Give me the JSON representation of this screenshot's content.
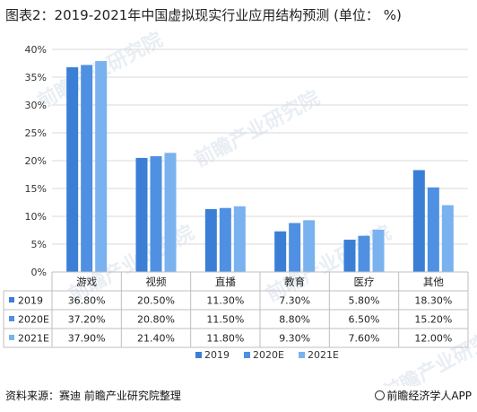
{
  "title": "图表2：2019-2021年中国虚拟现实行业应用结构预测 (单位： %)",
  "source": "资料来源：赛迪 前瞻产业研究院整理",
  "brand": "前瞻经济学人APP",
  "watermark": "前瞻产业研究院",
  "chart_data": {
    "type": "bar",
    "categories": [
      "游戏",
      "视频",
      "直播",
      "教育",
      "医疗",
      "其他"
    ],
    "series": [
      {
        "name": "2019",
        "values": [
          36.8,
          20.5,
          11.3,
          7.3,
          5.8,
          18.3
        ],
        "labels": [
          "36.80%",
          "20.50%",
          "11.30%",
          "7.30%",
          "5.80%",
          "18.30%"
        ],
        "color": "#3a7fd5"
      },
      {
        "name": "2020E",
        "values": [
          37.2,
          20.8,
          11.5,
          8.8,
          6.5,
          15.2
        ],
        "labels": [
          "37.20%",
          "20.80%",
          "11.50%",
          "8.80%",
          "6.50%",
          "15.20%"
        ],
        "color": "#4f90e2"
      },
      {
        "name": "2021E",
        "values": [
          37.9,
          21.4,
          11.8,
          9.3,
          7.6,
          12.0
        ],
        "labels": [
          "37.90%",
          "21.40%",
          "11.80%",
          "9.30%",
          "7.60%",
          "12.00%"
        ],
        "color": "#7ab2ef"
      }
    ],
    "yticks": [
      "0%",
      "5%",
      "10%",
      "15%",
      "20%",
      "25%",
      "30%",
      "35%",
      "40%"
    ],
    "ylim": [
      0,
      40
    ],
    "grid": true,
    "legend": "bottom",
    "data_table": true
  }
}
